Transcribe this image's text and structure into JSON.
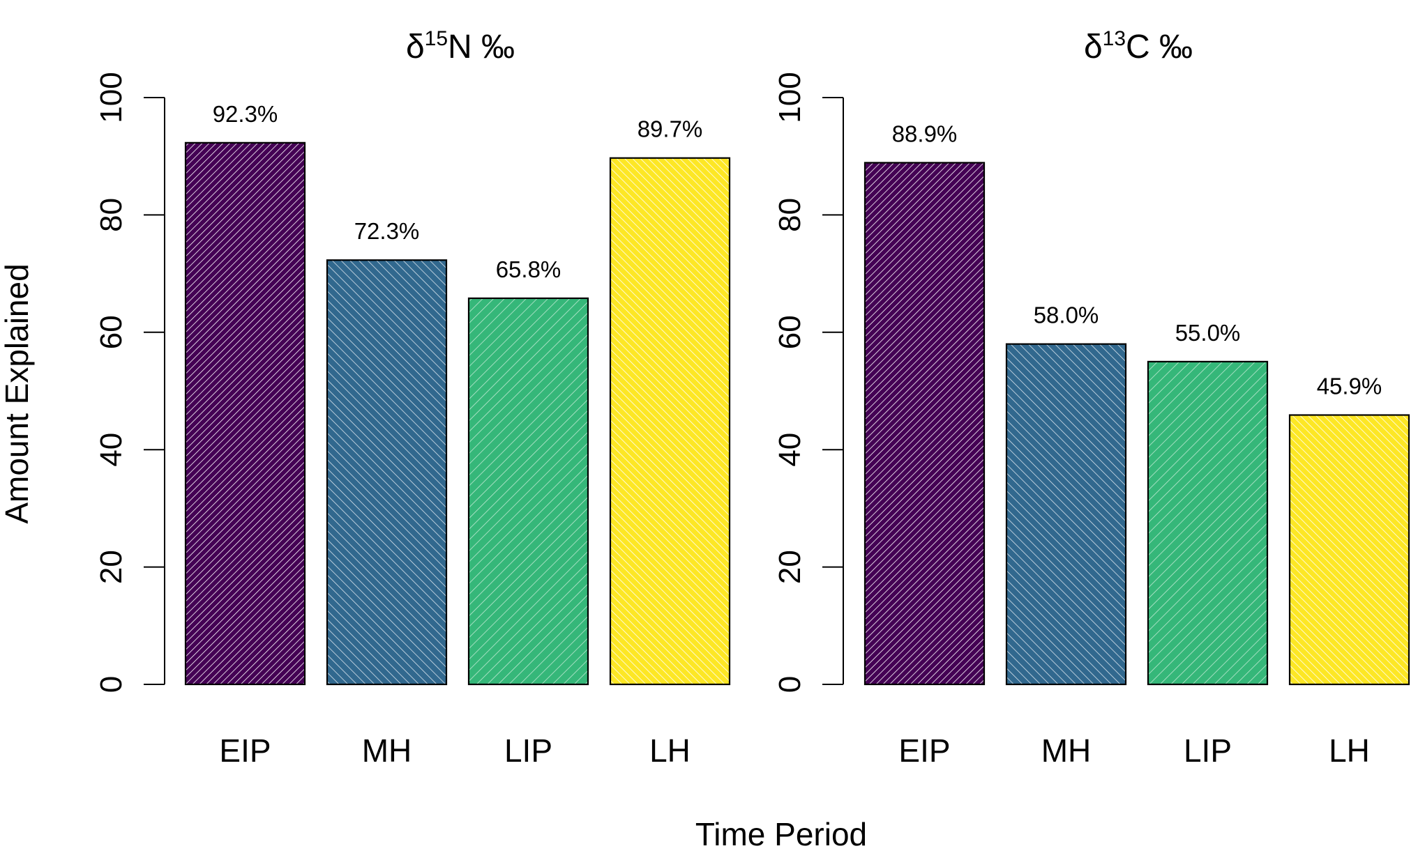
{
  "chart_data": [
    {
      "type": "bar",
      "title": {
        "delta": "δ",
        "sup": "15",
        "rest": "N ‰"
      },
      "categories": [
        "EIP",
        "MH",
        "LIP",
        "LH"
      ],
      "values": [
        92.3,
        72.3,
        65.8,
        89.7
      ],
      "value_labels": [
        "92.3%",
        "72.3%",
        "65.8%",
        "89.7%"
      ],
      "ylim": [
        0,
        100
      ],
      "yticks": [
        0,
        20,
        40,
        60,
        80,
        100
      ],
      "ytick_labels": [
        "0",
        "20",
        "40",
        "60",
        "80",
        "100"
      ],
      "ylabel": "Amount Explained",
      "xlabel": "Time Period",
      "grid": false,
      "colors": [
        "#440154",
        "#31688e",
        "#35b779",
        "#fde725"
      ],
      "fill_pattern": "diagonal-hatch"
    },
    {
      "type": "bar",
      "title": {
        "delta": "δ",
        "sup": "13",
        "rest": "C ‰"
      },
      "categories": [
        "EIP",
        "MH",
        "LIP",
        "LH"
      ],
      "values": [
        88.9,
        58.0,
        55.0,
        45.9
      ],
      "value_labels": [
        "88.9%",
        "58.0%",
        "55.0%",
        "45.9%"
      ],
      "ylim": [
        0,
        100
      ],
      "yticks": [
        0,
        20,
        40,
        60,
        80,
        100
      ],
      "ytick_labels": [
        "0",
        "20",
        "40",
        "60",
        "80",
        "100"
      ],
      "grid": false,
      "colors": [
        "#440154",
        "#31688e",
        "#35b779",
        "#fde725"
      ],
      "fill_pattern": "diagonal-hatch"
    }
  ],
  "labels": {
    "ylabel": "Amount Explained",
    "xlabel": "Time Period"
  }
}
